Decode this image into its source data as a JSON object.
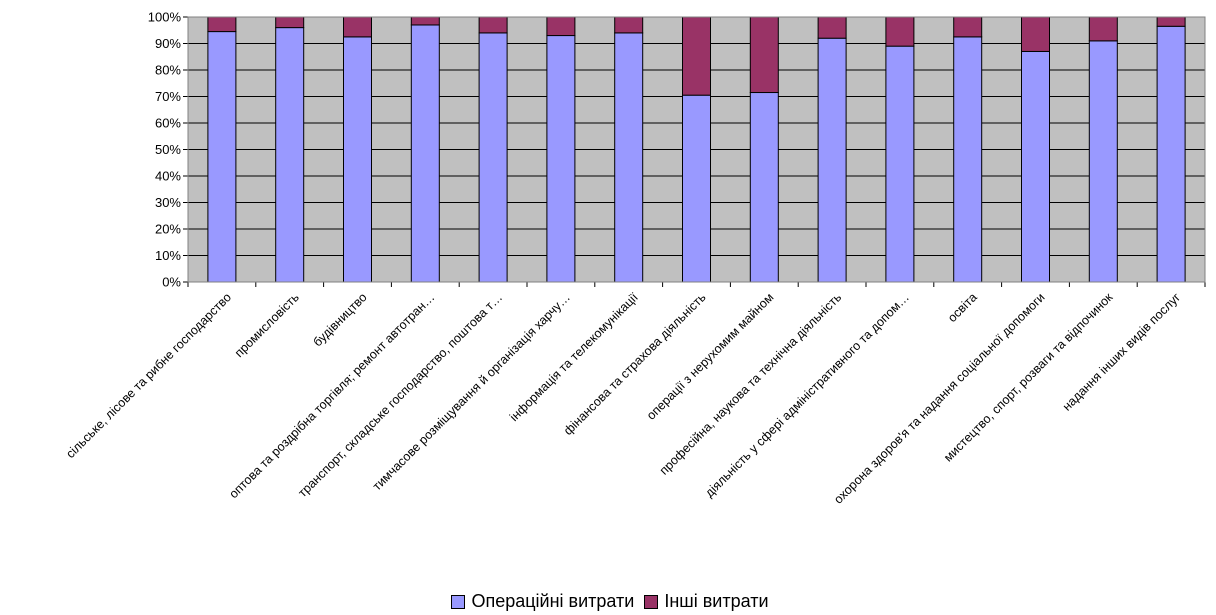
{
  "chart_data": {
    "type": "bar",
    "stacked": "percent",
    "categories": [
      "сільське, лісове та рибне господарство",
      "промисловість",
      "будівництво",
      "оптова та роздрібна торгівля; ремонт автотран…",
      "транспорт, складське господарство, поштова т…",
      "тимчасове розміщування й організація харчу…",
      "інформація та телекомунікації",
      "фінансова та страхова діяльність",
      "операції з нерухомим майном",
      "професійна, наукова та технічна діяльність",
      "діяльність у сфері адміністративного та допом…",
      "освіта",
      "охорона здоров'я та надання соціальної допомоги",
      "мистецтво, спорт, розваги та відпочинок",
      "надання інших видів послуг"
    ],
    "series": [
      {
        "name": "Операційні витрати",
        "color": "#9999FF",
        "values": [
          94.5,
          96,
          92.5,
          97,
          94,
          93,
          94,
          70.5,
          71.5,
          92,
          89,
          92.5,
          87,
          91,
          96.5
        ]
      },
      {
        "name": "Інші витрати",
        "color": "#993366",
        "values": [
          5.5,
          4,
          7.5,
          3,
          6,
          7,
          6,
          29.5,
          28.5,
          8,
          11,
          7.5,
          13,
          9,
          3.5
        ]
      }
    ],
    "y_ticks": [
      "0%",
      "10%",
      "20%",
      "30%",
      "40%",
      "50%",
      "60%",
      "70%",
      "80%",
      "90%",
      "100%"
    ],
    "ylim": [
      0,
      100
    ],
    "grid": true,
    "plot_background": "#C0C0C0",
    "legend_position": "bottom"
  }
}
